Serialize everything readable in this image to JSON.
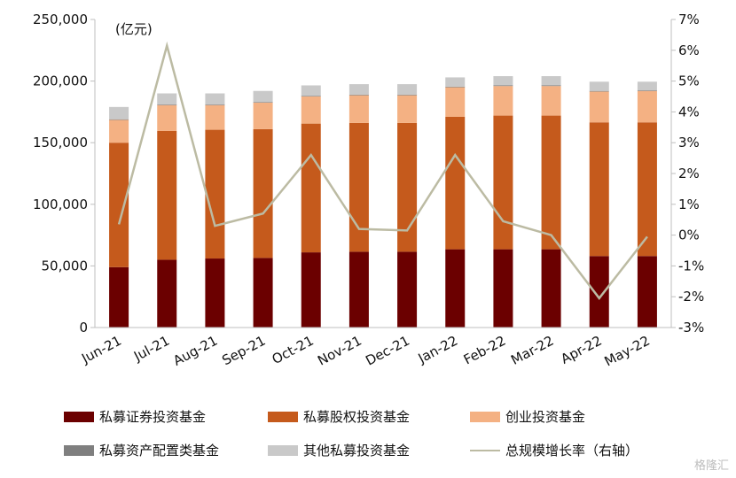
{
  "chart_data": {
    "type": "bar",
    "stacked": true,
    "unit_label": "(亿元)",
    "categories": [
      "Jun-21",
      "Jul-21",
      "Aug-21",
      "Sep-21",
      "Oct-21",
      "Nov-21",
      "Dec-21",
      "Jan-22",
      "Feb-22",
      "Mar-22",
      "Apr-22",
      "May-22"
    ],
    "series": [
      {
        "name": "私募证券投资基金",
        "color": "#6b0000",
        "values": [
          49000,
          55000,
          56000,
          56500,
          61000,
          61500,
          61500,
          63500,
          63500,
          63500,
          58000,
          58000
        ]
      },
      {
        "name": "私募股权投资基金",
        "color": "#c55a1c",
        "values": [
          101000,
          104500,
          104500,
          104500,
          104500,
          104500,
          104500,
          107500,
          108500,
          108500,
          108500,
          108500
        ]
      },
      {
        "name": "创业投资基金",
        "color": "#f4b183",
        "values": [
          18500,
          21000,
          20000,
          21500,
          22000,
          22500,
          22500,
          24000,
          24000,
          24000,
          25000,
          25500
        ]
      },
      {
        "name": "私募资产配置类基金",
        "color": "#7f7f7f",
        "values": [
          500,
          500,
          500,
          500,
          500,
          500,
          500,
          500,
          500,
          500,
          500,
          500
        ]
      },
      {
        "name": "其他私募投资基金",
        "color": "#c9c9c9",
        "values": [
          10000,
          9000,
          9000,
          9000,
          8500,
          8500,
          8500,
          7500,
          7500,
          7500,
          7500,
          7000
        ]
      }
    ],
    "line": {
      "name": "总规模增长率（右轴）",
      "color": "#bcbba3",
      "values": [
        0.35,
        6.15,
        0.3,
        0.7,
        2.6,
        0.2,
        0.15,
        2.6,
        0.45,
        0.0,
        -2.05,
        -0.05
      ]
    },
    "y_left": {
      "min": 0,
      "max": 250000,
      "ticks": [
        "0",
        "50,000",
        "100,000",
        "150,000",
        "200,000",
        "250,000"
      ]
    },
    "y_right": {
      "min": -3,
      "max": 7,
      "ticks": [
        "-3%",
        "-2%",
        "-1%",
        "0%",
        "1%",
        "2%",
        "3%",
        "4%",
        "5%",
        "6%",
        "7%"
      ]
    },
    "grid": false,
    "legend_position": "bottom"
  },
  "watermark": "格隆汇"
}
